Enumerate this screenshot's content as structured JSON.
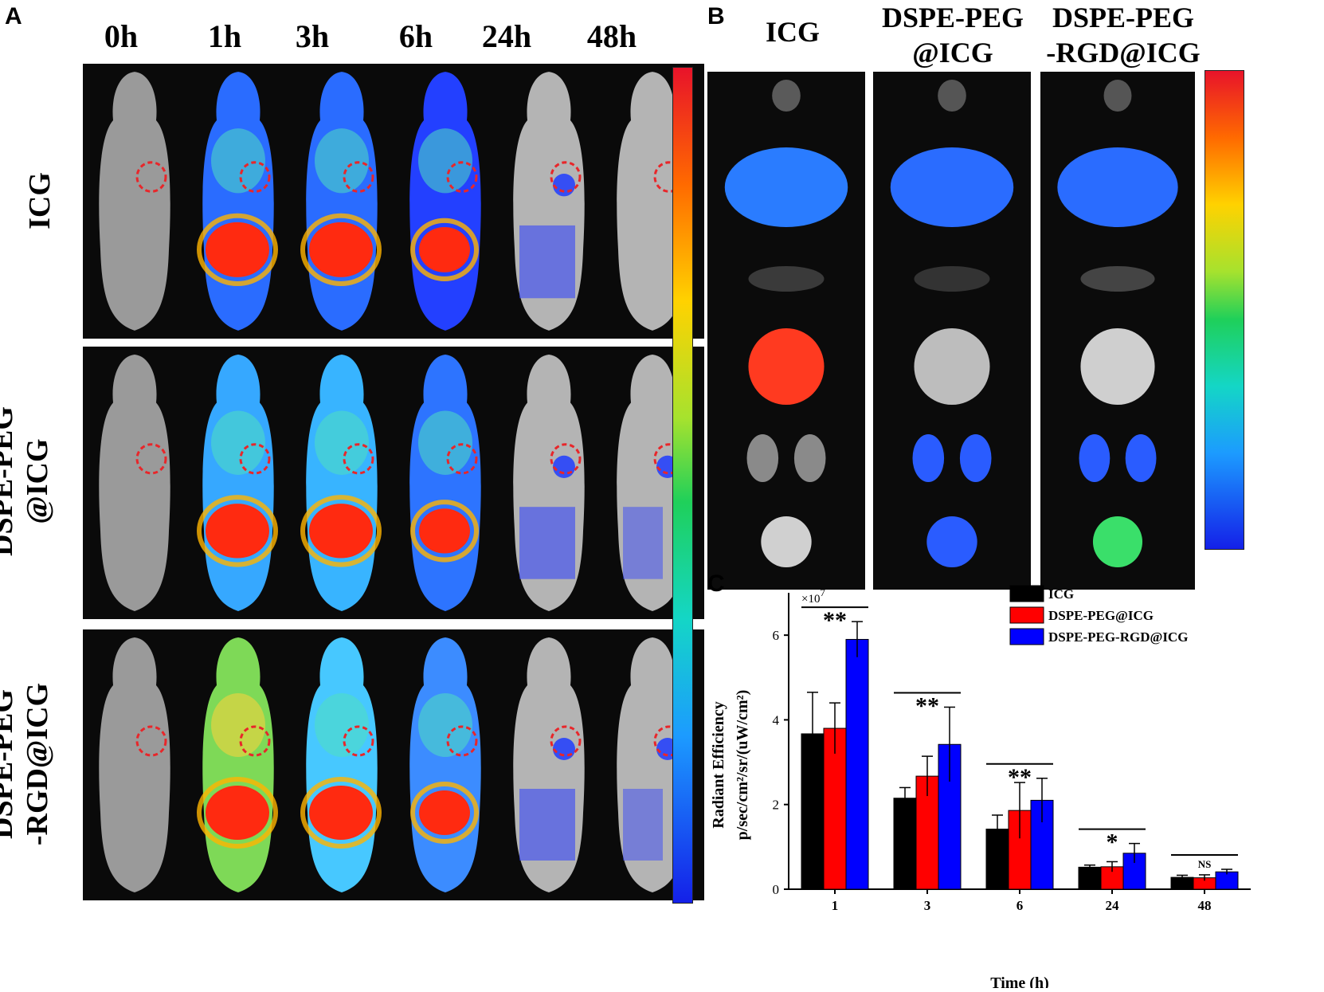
{
  "panels": {
    "a": "A",
    "b": "B",
    "c": "C"
  },
  "panel_a": {
    "time_labels": [
      "0h",
      "1h",
      "3h",
      "6h",
      "24h",
      "48h"
    ],
    "row_labels": [
      [
        "ICG"
      ],
      [
        "DSPE-PEG",
        "@ICG"
      ],
      [
        "DSPE-PEG",
        "-RGD@ICG"
      ]
    ]
  },
  "panel_b": {
    "group_titles": [
      [
        "ICG"
      ],
      [
        "DSPE-PEG",
        "@ICG"
      ],
      [
        "DSPE-PEG",
        "-RGD@ICG"
      ]
    ]
  },
  "colorbar": {
    "top_color": "#e8132a",
    "bottom_color": "#1420e8"
  },
  "chart_data": {
    "type": "bar",
    "categories": [
      "1",
      "3",
      "6",
      "24",
      "48"
    ],
    "series": [
      {
        "name": "ICG",
        "color": "#000000",
        "values": [
          3.67,
          2.15,
          1.42,
          0.52,
          0.28
        ],
        "errors": [
          0.98,
          0.25,
          0.33,
          0.05,
          0.05
        ]
      },
      {
        "name": "DSPE-PEG@ICG",
        "color": "#ff0000",
        "values": [
          3.8,
          2.67,
          1.86,
          0.53,
          0.27
        ],
        "errors": [
          0.6,
          0.47,
          0.66,
          0.12,
          0.07
        ]
      },
      {
        "name": "DSPE-PEG-RGD@ICG",
        "color": "#0000ff",
        "values": [
          5.9,
          3.42,
          2.1,
          0.85,
          0.41
        ],
        "errors": [
          0.42,
          0.88,
          0.52,
          0.23,
          0.06
        ]
      }
    ],
    "significance": [
      "**",
      "**",
      "**",
      "*",
      "NS"
    ],
    "xlabel": "Time (h)",
    "ylabel_line1": "Radiant Efficiency",
    "ylabel_line2": "p/sec/cm²/sr/(uW/cm²)",
    "multiplier": "×10",
    "multiplier_exp": "7",
    "yticks": [
      "0",
      "2",
      "4",
      "6"
    ],
    "ylim": [
      0,
      7
    ]
  }
}
